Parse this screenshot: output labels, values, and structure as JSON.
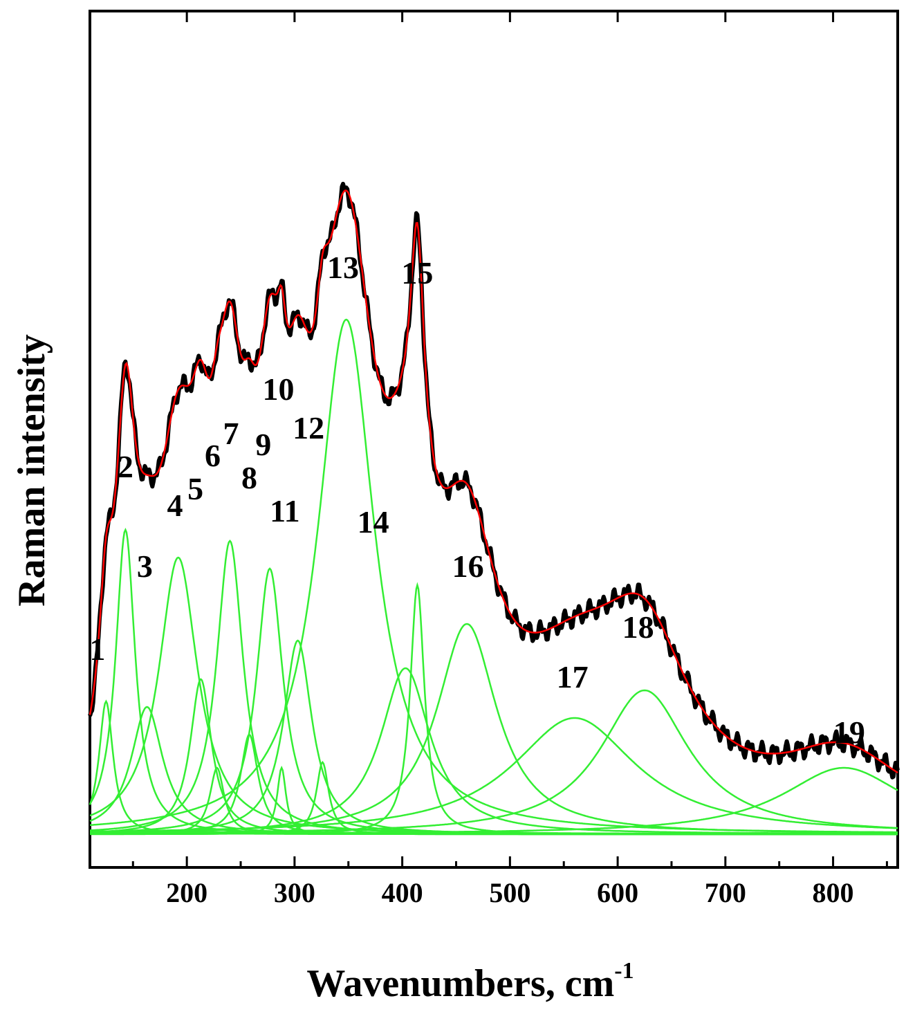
{
  "chart_data": {
    "type": "line",
    "xlabel": "Wavenumbers, cm",
    "xlabel_superscript": "-1",
    "ylabel": "Raman intensity",
    "xlim": [
      110,
      860
    ],
    "ylim": [
      0,
      1.3
    ],
    "xticks": [
      200,
      300,
      400,
      500,
      600,
      700,
      800
    ],
    "yticks_shown": false,
    "grid": false,
    "legend": "none",
    "colors": {
      "experimental": "#000000",
      "fit": "#ff0000",
      "components": "#33ee33"
    },
    "baseline": 0.015,
    "components": [
      {
        "center": 125,
        "height": 0.24,
        "width": 8,
        "label": "1"
      },
      {
        "center": 143,
        "height": 0.55,
        "width": 11,
        "label": "2"
      },
      {
        "center": 163,
        "height": 0.23,
        "width": 18,
        "label": "3"
      },
      {
        "center": 192,
        "height": 0.5,
        "width": 22,
        "label": "4"
      },
      {
        "center": 213,
        "height": 0.28,
        "width": 12,
        "label": "5"
      },
      {
        "center": 228,
        "height": 0.12,
        "width": 8,
        "label": "6"
      },
      {
        "center": 240,
        "height": 0.53,
        "width": 15,
        "label": "7"
      },
      {
        "center": 258,
        "height": 0.18,
        "width": 10,
        "label": "8"
      },
      {
        "center": 277,
        "height": 0.48,
        "width": 15,
        "label": "9"
      },
      {
        "center": 288,
        "height": 0.12,
        "width": 5,
        "label": "10"
      },
      {
        "center": 303,
        "height": 0.35,
        "width": 16,
        "label": "11"
      },
      {
        "center": 326,
        "height": 0.13,
        "width": 7,
        "label": "12"
      },
      {
        "center": 348,
        "height": 0.93,
        "width": 32,
        "label": "13"
      },
      {
        "center": 403,
        "height": 0.3,
        "width": 28,
        "label": "14"
      },
      {
        "center": 414,
        "height": 0.45,
        "width": 8,
        "label": "15"
      },
      {
        "center": 460,
        "height": 0.38,
        "width": 34,
        "label": "16"
      },
      {
        "center": 560,
        "height": 0.21,
        "width": 70,
        "label": "17"
      },
      {
        "center": 625,
        "height": 0.26,
        "width": 50,
        "label": "18"
      },
      {
        "center": 810,
        "height": 0.12,
        "width": 70,
        "label": "19"
      }
    ],
    "peak_labels": [
      {
        "text": "1",
        "x": 117,
        "y": 0.33
      },
      {
        "text": "2",
        "x": 143,
        "y": 0.66
      },
      {
        "text": "3",
        "x": 161,
        "y": 0.48
      },
      {
        "text": "4",
        "x": 189,
        "y": 0.59
      },
      {
        "text": "5",
        "x": 208,
        "y": 0.62
      },
      {
        "text": "6",
        "x": 224,
        "y": 0.68
      },
      {
        "text": "7",
        "x": 241,
        "y": 0.72
      },
      {
        "text": "8",
        "x": 258,
        "y": 0.64
      },
      {
        "text": "9",
        "x": 271,
        "y": 0.7
      },
      {
        "text": "10",
        "x": 285,
        "y": 0.8
      },
      {
        "text": "11",
        "x": 291,
        "y": 0.58
      },
      {
        "text": "12",
        "x": 313,
        "y": 0.73
      },
      {
        "text": "13",
        "x": 345,
        "y": 1.02
      },
      {
        "text": "14",
        "x": 373,
        "y": 0.56
      },
      {
        "text": "15",
        "x": 414,
        "y": 1.01
      },
      {
        "text": "16",
        "x": 461,
        "y": 0.48
      },
      {
        "text": "17",
        "x": 558,
        "y": 0.28
      },
      {
        "text": "18",
        "x": 619,
        "y": 0.37
      },
      {
        "text": "19",
        "x": 815,
        "y": 0.18
      }
    ]
  }
}
